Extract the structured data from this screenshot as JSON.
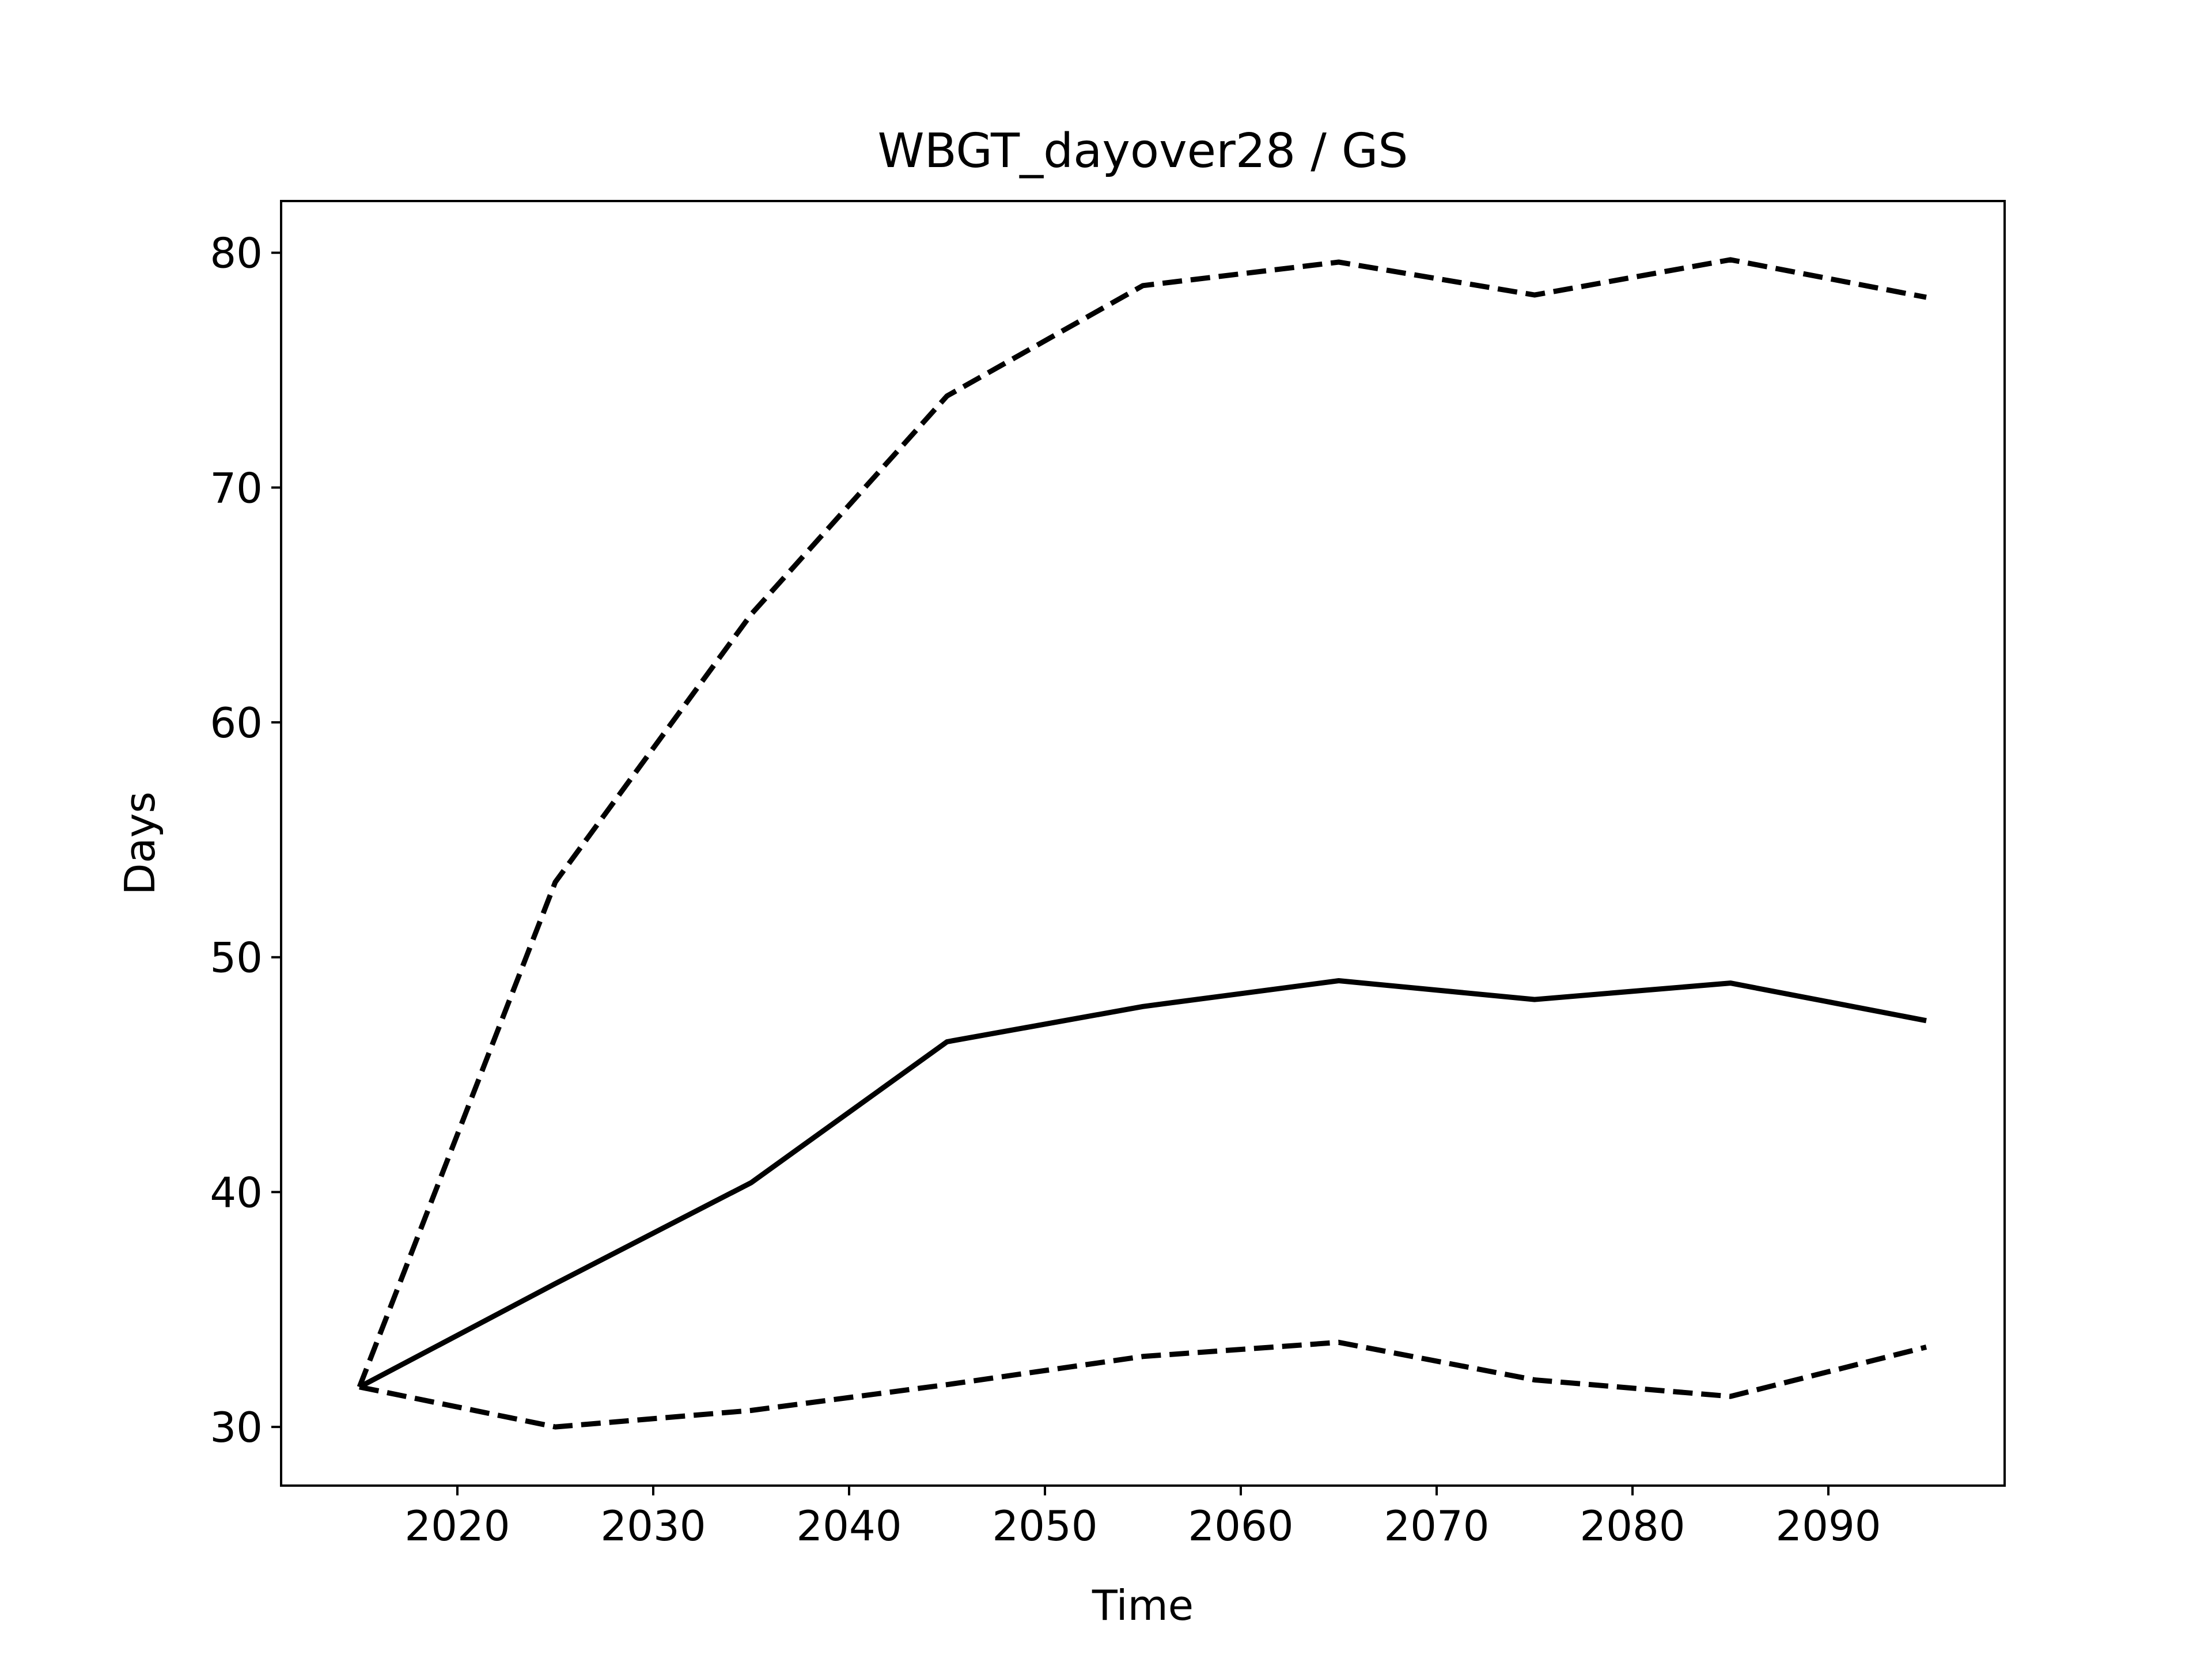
{
  "chart_data": {
    "type": "line",
    "title": "WBGT_dayover28 / GS",
    "xlabel": "Time",
    "ylabel": "Days",
    "x": [
      2015,
      2025,
      2035,
      2045,
      2055,
      2065,
      2075,
      2085,
      2095
    ],
    "series": [
      {
        "line_style": "solid",
        "color": "#000000",
        "values": [
          31.7,
          36.1,
          40.4,
          46.4,
          47.9,
          49.0,
          48.2,
          48.9,
          47.3
        ]
      },
      {
        "line_style": "dashed",
        "color": "#000000",
        "values": [
          31.7,
          53.2,
          64.6,
          73.9,
          78.6,
          79.6,
          78.2,
          79.7,
          78.1
        ]
      },
      {
        "line_style": "dashed",
        "color": "#000000",
        "values": [
          31.7,
          30.0,
          30.7,
          31.8,
          33.0,
          33.6,
          32.0,
          31.3,
          33.4
        ]
      }
    ],
    "xlim": [
      2011,
      2099
    ],
    "ylim": [
      27.5,
      82.2
    ],
    "xticks": [
      2020,
      2030,
      2040,
      2050,
      2060,
      2070,
      2080,
      2090
    ],
    "yticks": [
      30,
      40,
      50,
      60,
      70,
      80
    ],
    "grid": false,
    "legend": "none"
  }
}
